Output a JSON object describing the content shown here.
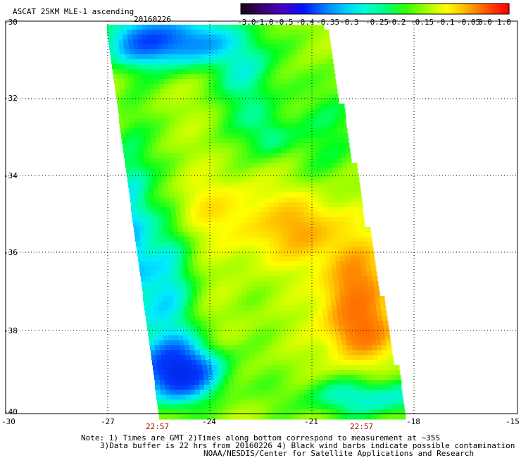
{
  "header": {
    "title": "ASCAT 25KM MLE-1 ascending",
    "date": "20160226"
  },
  "colorbar": {
    "labels": [
      "-3.0",
      "-1.0",
      "-0.5",
      "-0.4",
      "-0.35",
      "-0.3",
      "-0.25",
      "-0.2",
      "-0.15",
      "-0.1",
      "-0.05",
      "0.0",
      "1.0"
    ],
    "colors": [
      "#1a0018",
      "#3a0070",
      "#4a00c8",
      "#0010ff",
      "#0078ff",
      "#00c8ff",
      "#00ffd8",
      "#00ff80",
      "#30ff00",
      "#a0ff00",
      "#ffff00",
      "#ffb000",
      "#ff5000",
      "#ff0000"
    ]
  },
  "map": {
    "lat_ticks": [
      "-30",
      "-32",
      "-34",
      "-36",
      "-38",
      "-40"
    ],
    "lon_ticks": [
      "-30",
      "-27",
      "-24",
      "-21",
      "-18",
      "-15"
    ],
    "times": [
      "22:57",
      "22:57"
    ]
  },
  "footer": {
    "line1": "Note: 1) Times are GMT 2)Times along bottom correspond to measurement at ~35S",
    "line2": "3)Data buffer is 22 hrs from 20160226 4) Black wind barbs indicate possible contamination",
    "line3": "NOAA/NESDIS/Center for Satellite Applications and Research"
  }
}
